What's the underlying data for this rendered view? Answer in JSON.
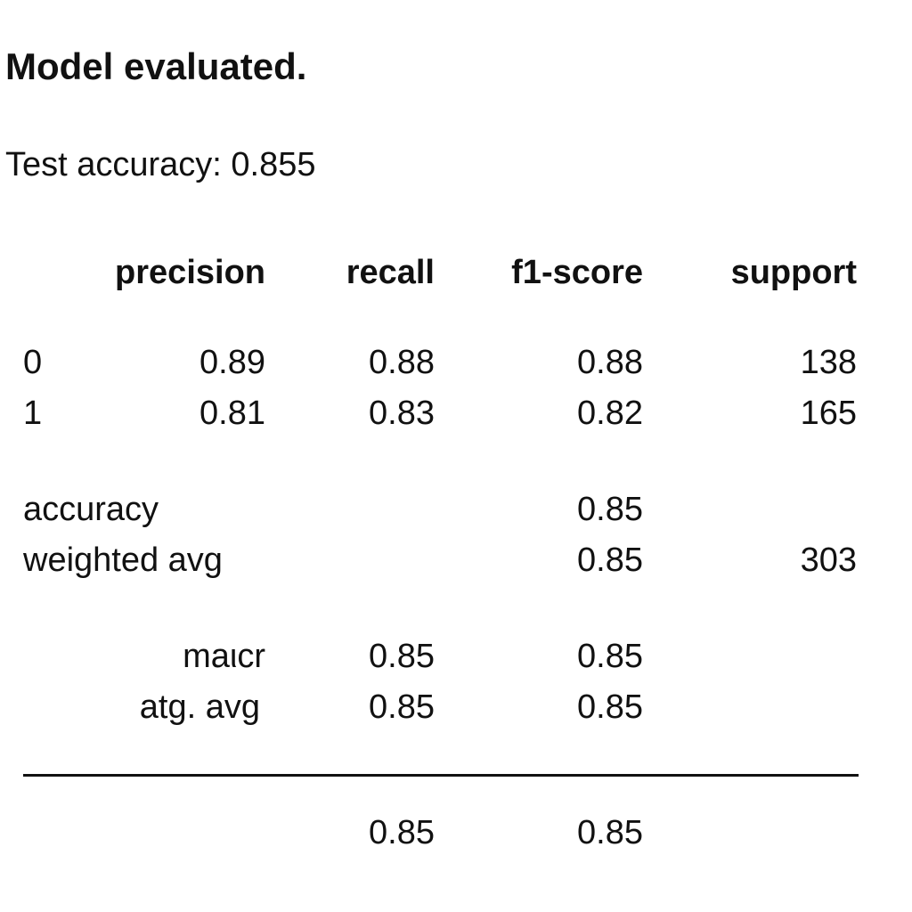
{
  "heading": "Model evaluated.",
  "test_accuracy": "Test accuracy: 0.855",
  "report": {
    "headers": {
      "precision": "precision",
      "recall": "recall",
      "f1": "f1-score",
      "support": "support"
    },
    "class_0": {
      "label": "0",
      "precision": "0.89",
      "recall": "0.88",
      "f1": "0.88",
      "support": "138"
    },
    "class_1": {
      "label": "1",
      "precision": "0.81",
      "recall": "0.83",
      "f1": "0.82",
      "support": "165"
    },
    "accuracy_row": {
      "label": "accuracy",
      "f1": "0.85"
    },
    "weighted_row": {
      "label": "weighted avg",
      "f1": "0.85",
      "support": "303"
    },
    "macro_row": {
      "label": "maιcr",
      "recall": "0.85",
      "f1": "0.85"
    },
    "avg_row": {
      "label": "atg. avg",
      "recall": "0.85",
      "f1": "0.85"
    },
    "total_row": {
      "recall": "0.85",
      "f1": "0.85"
    }
  }
}
